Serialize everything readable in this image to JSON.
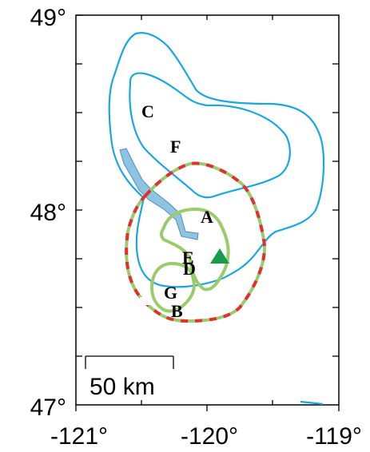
{
  "map": {
    "y_axis": {
      "ticks": [
        {
          "lat": 49,
          "label": "49°"
        },
        {
          "lat": 48,
          "label": "48°"
        },
        {
          "lat": 47,
          "label": "47°"
        }
      ]
    },
    "x_axis": {
      "ticks": [
        {
          "lon": -121,
          "label": "-121°"
        },
        {
          "lon": -120,
          "label": "-120°"
        },
        {
          "lon": -119,
          "label": "-119°"
        }
      ]
    },
    "region_labels": {
      "a": "A",
      "b": "B",
      "c": "C",
      "d": "D",
      "e": "E",
      "f": "F",
      "g": "G"
    },
    "scale_bar": {
      "label": "50 km"
    },
    "colors": {
      "contour": "#1aa7e0",
      "river_fill": "#8fc4e0",
      "river_stroke": "#4d8fc0",
      "green_contour": "#9ccb6c",
      "red_dash": "#e03030",
      "marker": "#1a9b4b"
    },
    "marker": {
      "shape": "triangle",
      "icon": "triangle-marker-icon"
    }
  }
}
